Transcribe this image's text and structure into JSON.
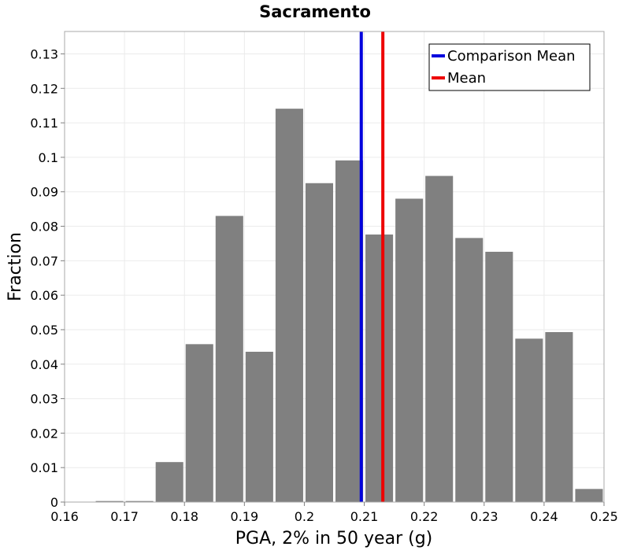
{
  "chart_data": {
    "type": "bar",
    "title": "Sacramento",
    "xlabel": "PGA, 2% in 50 year (g)",
    "ylabel": "Fraction",
    "xlim": [
      0.16,
      0.25
    ],
    "ylim": [
      0,
      0.1365
    ],
    "x_ticks": [
      "0.16",
      "0.17",
      "0.18",
      "0.19",
      "0.2",
      "0.21",
      "0.22",
      "0.23",
      "0.24",
      "0.25"
    ],
    "y_ticks": [
      "0",
      "0.01",
      "0.02",
      "0.03",
      "0.04",
      "0.05",
      "0.06",
      "0.07",
      "0.08",
      "0.09",
      "0.1",
      "0.11",
      "0.12",
      "0.13"
    ],
    "grid": true,
    "bin_width": 0.005,
    "bins": [
      {
        "x_start": 0.16,
        "value": 0.0001
      },
      {
        "x_start": 0.165,
        "value": 0.0003
      },
      {
        "x_start": 0.17,
        "value": 0.0003
      },
      {
        "x_start": 0.175,
        "value": 0.0116
      },
      {
        "x_start": 0.18,
        "value": 0.0458
      },
      {
        "x_start": 0.185,
        "value": 0.083
      },
      {
        "x_start": 0.19,
        "value": 0.0436
      },
      {
        "x_start": 0.195,
        "value": 0.1141
      },
      {
        "x_start": 0.2,
        "value": 0.0925
      },
      {
        "x_start": 0.205,
        "value": 0.0991
      },
      {
        "x_start": 0.21,
        "value": 0.0776
      },
      {
        "x_start": 0.215,
        "value": 0.088
      },
      {
        "x_start": 0.22,
        "value": 0.0946
      },
      {
        "x_start": 0.225,
        "value": 0.0766
      },
      {
        "x_start": 0.23,
        "value": 0.0726
      },
      {
        "x_start": 0.235,
        "value": 0.0474
      },
      {
        "x_start": 0.24,
        "value": 0.0493
      },
      {
        "x_start": 0.245,
        "value": 0.0038
      }
    ],
    "bar_color": "#808080",
    "vertical_lines": [
      {
        "name": "Comparison Mean",
        "x": 0.2095,
        "color": "#0000dd"
      },
      {
        "name": "Mean",
        "x": 0.2131,
        "color": "#ee0000"
      }
    ],
    "legend": {
      "position": "top-right",
      "entries": [
        {
          "label": "Comparison Mean",
          "color": "#0000dd"
        },
        {
          "label": "Mean",
          "color": "#ee0000"
        }
      ]
    }
  }
}
